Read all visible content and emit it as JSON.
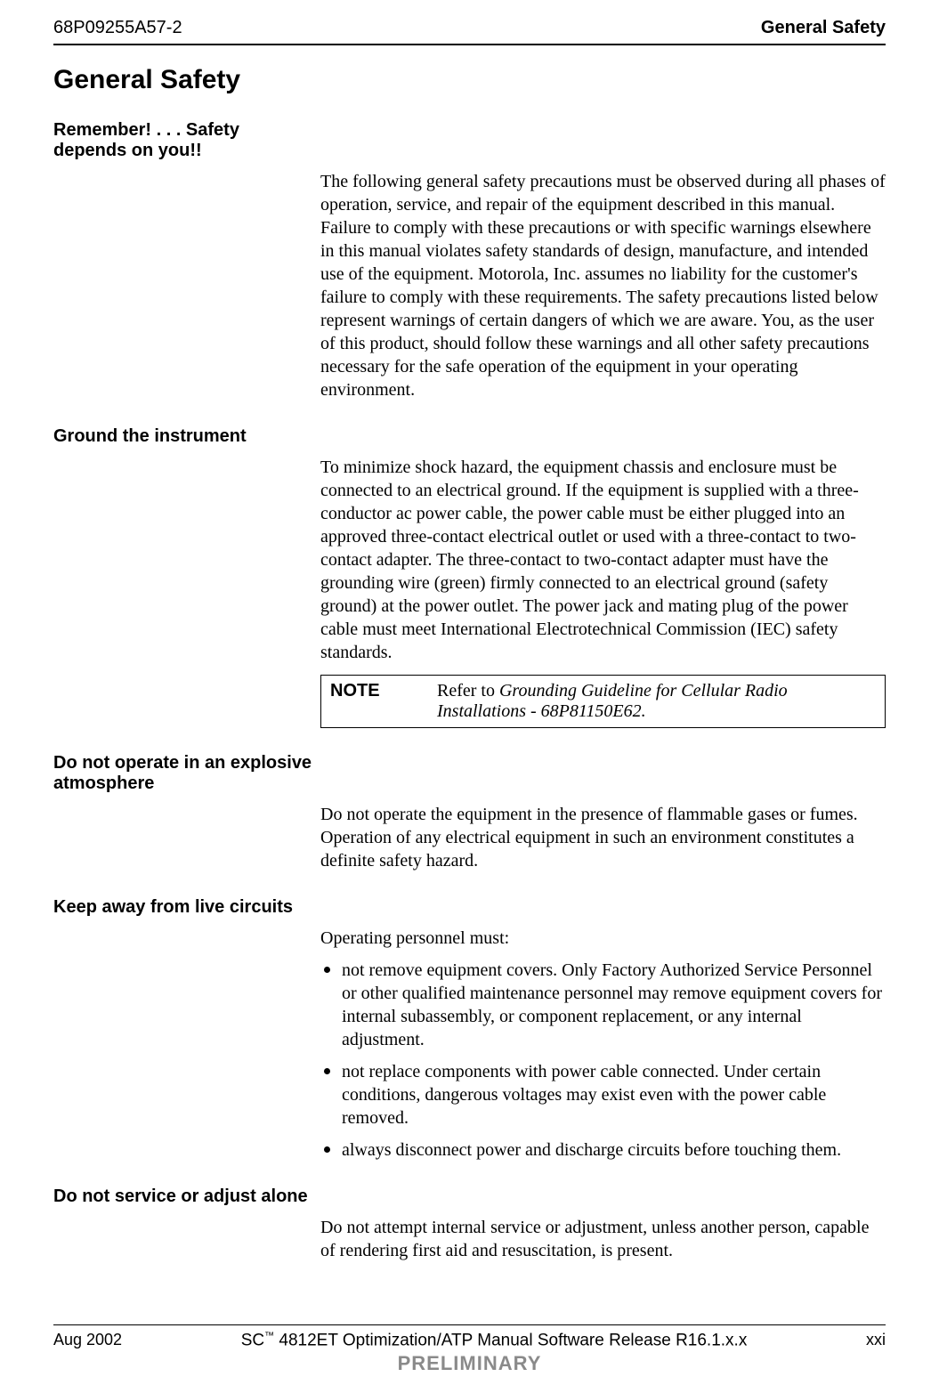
{
  "header": {
    "doc_number": "68P09255A57-2",
    "right_title": "General Safety"
  },
  "title": "General Safety",
  "sections": {
    "remember": {
      "heading_line1": "Remember! . . . Safety",
      "heading_line2": "depends on you!!",
      "body": "The following general safety precautions must be observed during all phases of operation, service, and repair of the equipment described in this manual. Failure to comply with these precautions or with specific warnings elsewhere in this manual violates safety standards of design, manufacture, and intended use of the equipment. Motorola, Inc. assumes no liability for the customer's failure to comply with these requirements. The safety precautions listed below represent warnings of certain dangers of which we are aware. You, as the user of this product, should follow these warnings and all other safety precautions necessary for the safe operation of the equipment in your operating environment."
    },
    "ground": {
      "heading": "Ground the instrument",
      "body": "To minimize shock hazard, the equipment chassis and enclosure must be connected to an electrical ground. If the equipment is supplied with a three-conductor ac power cable, the power cable must be either plugged into an approved three-contact electrical outlet or used with a three-contact to two-contact adapter. The three-contact to two-contact adapter must have the grounding wire (green) firmly connected to an electrical ground (safety ground) at the power outlet. The power jack and mating plug of the power cable must meet International Electrotechnical Commission (IEC) safety standards.",
      "note_label": "NOTE",
      "note_prefix": "Refer to ",
      "note_italic": "Grounding Guideline for Cellular Radio Installations - 68P81150E62."
    },
    "explosive": {
      "heading_line1": "Do not operate in an explosive",
      "heading_line2": "atmosphere",
      "body": "Do not operate the equipment in the presence of flammable gases or fumes. Operation of any electrical equipment in such an environment constitutes a definite safety hazard."
    },
    "live": {
      "heading": "Keep away from live circuits",
      "intro": "Operating personnel must:",
      "bullets": [
        "not remove equipment covers. Only Factory Authorized Service Personnel or other qualified maintenance personnel may remove equipment covers for internal subassembly, or component replacement, or any internal adjustment.",
        "not replace components with power cable connected. Under certain conditions, dangerous voltages may exist even with the power cable removed.",
        "always disconnect power and discharge circuits before touching them."
      ]
    },
    "alone": {
      "heading": "Do not service or adjust alone",
      "body": "Do not attempt internal service or adjustment, unless another person, capable of rendering first aid and resuscitation, is present."
    }
  },
  "footer": {
    "left": "Aug 2002",
    "center_prefix": "SC",
    "center_tm": "™",
    "center_rest": "4812ET Optimization/ATP Manual Software Release R16.1.x.x",
    "right": "xxi",
    "preliminary": "PRELIMINARY"
  }
}
